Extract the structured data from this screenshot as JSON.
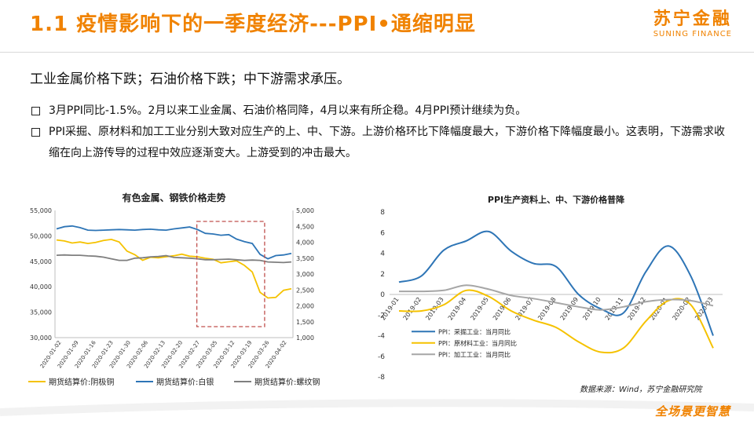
{
  "header": {
    "title": "1.1 疫情影响下的一季度经济---PPI•通缩明显"
  },
  "logo": {
    "cn": "苏宁金融",
    "en": "SUNING FINANCE"
  },
  "subtitle": "工业金属价格下跌；石油价格下跌；中下游需求承压。",
  "bullets": [
    "3月PPI同比-1.5%。2月以来工业金属、石油价格同降，4月以来有所企稳。4月PPI预计继续为负。",
    "PPI采掘、原材料和加工工业分别大致对应生产的上、中、下游。上游价格环比下降幅度最大，下游价格下降幅度最小。这表明，下游需求收缩在向上游传导的过程中效应逐渐变大。上游受到的冲击最大。"
  ],
  "source": "数据来源：Wind，苏宁金融研究院",
  "footer": "全场景更智慧",
  "colors": {
    "accent": "#f08200",
    "copper": "#f5c200",
    "silver": "#2e75b6",
    "rebar": "#7f7f7f",
    "highlight_box": "#c0504d"
  },
  "chart_data": [
    {
      "type": "line",
      "title": "有色金属、钢铁价格走势",
      "x_ticks": [
        "2020-01-02",
        "2020-01-09",
        "2020-01-16",
        "2020-01-23",
        "2020-01-30",
        "2020-02-06",
        "2020-02-13",
        "2020-02-20",
        "2020-02-27",
        "2020-03-05",
        "2020-03-12",
        "2020-03-19",
        "2020-03-26",
        "2020-04-02"
      ],
      "y_left": {
        "min": 30000,
        "max": 55000,
        "ticks": [
          "30,000",
          "35,000",
          "40,000",
          "45,000",
          "50,000",
          "55,000"
        ]
      },
      "y_right": {
        "min": 1000,
        "max": 5000,
        "ticks": [
          "1,000",
          "1,500",
          "2,000",
          "2,500",
          "3,000",
          "3,500",
          "4,000",
          "4,500",
          "5,000"
        ]
      },
      "series": [
        {
          "name": "期货结算价:阴极铜",
          "axis": "left",
          "values": [
            49200,
            49000,
            48600,
            48800,
            48500,
            48700,
            49100,
            49300,
            48800,
            47000,
            46300,
            45200,
            45800,
            45700,
            45900,
            46100,
            46400,
            46000,
            45900,
            45600,
            45400,
            44700,
            44900,
            45100,
            44200,
            42900,
            38900,
            37800,
            37900,
            39300,
            39600
          ]
        },
        {
          "name": "期货结算价:白银",
          "axis": "right",
          "values": [
            4420,
            4490,
            4510,
            4460,
            4380,
            4370,
            4380,
            4390,
            4400,
            4390,
            4380,
            4400,
            4410,
            4390,
            4380,
            4420,
            4450,
            4480,
            4400,
            4280,
            4260,
            4220,
            4240,
            4100,
            4020,
            3960,
            3620,
            3480,
            3580,
            3600,
            3650
          ]
        },
        {
          "name": "期货结算价:螺纹钢",
          "axis": "right",
          "values": [
            3590,
            3600,
            3590,
            3590,
            3570,
            3560,
            3530,
            3480,
            3430,
            3430,
            3500,
            3510,
            3540,
            3550,
            3580,
            3520,
            3510,
            3500,
            3480,
            3450,
            3450,
            3460,
            3470,
            3450,
            3430,
            3440,
            3430,
            3380,
            3370,
            3360,
            3380
          ]
        }
      ],
      "highlight_range": [
        "2020-02-27",
        "2020-03-26"
      ]
    },
    {
      "type": "line",
      "title": "PPI生产资料上、中、下游价格普降",
      "categories": [
        "2019-01",
        "2019-02",
        "2019-03",
        "2019-04",
        "2019-05",
        "2019-06",
        "2019-07",
        "2019-08",
        "2019-09",
        "2019-10",
        "2019-11",
        "2019-12",
        "2020-01",
        "2020-02",
        "2020-03"
      ],
      "ylim": [
        -8,
        8
      ],
      "y_ticks": [
        "-8",
        "-6",
        "-4",
        "-2",
        "0",
        "2",
        "4",
        "6",
        "8"
      ],
      "series": [
        {
          "name": "PPI：采掘工业：当月同比",
          "values": [
            1.2,
            1.8,
            4.3,
            5.2,
            6.1,
            4.2,
            3.0,
            2.7,
            0.0,
            -1.4,
            -1.8,
            2.2,
            4.7,
            1.8,
            -4.0
          ]
        },
        {
          "name": "PPI：原材料工业：当月同比",
          "values": [
            -1.6,
            -1.6,
            -1.0,
            0.4,
            -0.2,
            -1.6,
            -2.5,
            -3.2,
            -4.6,
            -5.6,
            -5.2,
            -2.6,
            -0.6,
            -1.0,
            -5.2
          ]
        },
        {
          "name": "PPI：加工工业：当月同比",
          "values": [
            0.3,
            0.3,
            0.4,
            0.9,
            0.5,
            -0.1,
            -0.4,
            -0.8,
            -1.2,
            -1.5,
            -1.2,
            -0.7,
            -0.5,
            -0.6,
            -1.1
          ]
        }
      ]
    }
  ]
}
